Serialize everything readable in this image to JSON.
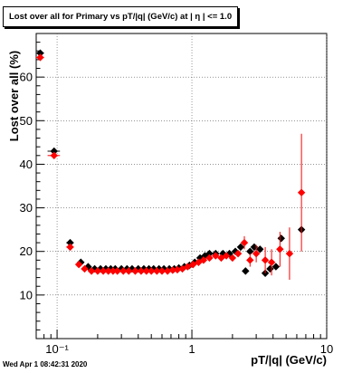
{
  "title": "Lost over all for Primary vs pT/|q| (GeV/c) at |  η | <= 1.0",
  "footer": "Wed Apr  1 08:42:31 2020",
  "chart_data": {
    "type": "scatter",
    "xlabel": "pT/|q| (GeV/c)",
    "ylabel": "Lost over all (%)",
    "xscale": "log",
    "xlim": [
      0.07,
      10
    ],
    "ylim": [
      0,
      70
    ],
    "grid": true,
    "x_tick_labels": [
      "10⁻¹",
      "1",
      "10"
    ],
    "x_tick_values": [
      0.1,
      1,
      10
    ],
    "y_tick_labels": [
      "10",
      "20",
      "30",
      "40",
      "50",
      "60"
    ],
    "y_tick_values": [
      10,
      20,
      30,
      40,
      50,
      60
    ],
    "series": [
      {
        "color": "#000000",
        "points": [
          {
            "x": 0.075,
            "y": 65.5,
            "xerr": 0.005
          },
          {
            "x": 0.095,
            "y": 43.0,
            "xerr": 0.01
          },
          {
            "x": 0.125,
            "y": 22.0,
            "xerr": 0.008
          },
          {
            "x": 0.15,
            "y": 17.5
          },
          {
            "x": 0.17,
            "y": 16.5
          },
          {
            "x": 0.19,
            "y": 16.0
          },
          {
            "x": 0.21,
            "y": 16.0
          },
          {
            "x": 0.23,
            "y": 16.0
          },
          {
            "x": 0.25,
            "y": 16.0
          },
          {
            "x": 0.27,
            "y": 16.0
          },
          {
            "x": 0.3,
            "y": 16.0
          },
          {
            "x": 0.33,
            "y": 16.0
          },
          {
            "x": 0.36,
            "y": 16.0
          },
          {
            "x": 0.4,
            "y": 16.0
          },
          {
            "x": 0.44,
            "y": 16.0
          },
          {
            "x": 0.48,
            "y": 16.0
          },
          {
            "x": 0.52,
            "y": 16.0
          },
          {
            "x": 0.57,
            "y": 16.0
          },
          {
            "x": 0.62,
            "y": 16.0
          },
          {
            "x": 0.68,
            "y": 16.0
          },
          {
            "x": 0.74,
            "y": 16.0
          },
          {
            "x": 0.8,
            "y": 16.2
          },
          {
            "x": 0.88,
            "y": 16.5
          },
          {
            "x": 0.96,
            "y": 16.8
          },
          {
            "x": 1.05,
            "y": 17.5
          },
          {
            "x": 1.15,
            "y": 18.5
          },
          {
            "x": 1.25,
            "y": 19.0
          },
          {
            "x": 1.35,
            "y": 19.5
          },
          {
            "x": 1.5,
            "y": 19.5
          },
          {
            "x": 1.7,
            "y": 19.5
          },
          {
            "x": 1.9,
            "y": 19.5
          },
          {
            "x": 2.1,
            "y": 20.0
          },
          {
            "x": 2.3,
            "y": 21.0
          },
          {
            "x": 2.5,
            "y": 15.5
          },
          {
            "x": 2.7,
            "y": 20.0
          },
          {
            "x": 2.9,
            "y": 21.0
          },
          {
            "x": 3.2,
            "y": 20.5
          },
          {
            "x": 3.5,
            "y": 15.0
          },
          {
            "x": 3.8,
            "y": 16.0
          },
          {
            "x": 4.2,
            "y": 16.5
          },
          {
            "x": 4.6,
            "y": 23.0
          },
          {
            "x": 6.5,
            "y": 25.0
          }
        ]
      },
      {
        "color": "#ff0000",
        "points": [
          {
            "x": 0.075,
            "y": 64.5,
            "xerr": 0.005
          },
          {
            "x": 0.095,
            "y": 42.0,
            "xerr": 0.01
          },
          {
            "x": 0.125,
            "y": 21.0,
            "xerr": 0.008
          },
          {
            "x": 0.145,
            "y": 17.0
          },
          {
            "x": 0.16,
            "y": 16.0
          },
          {
            "x": 0.18,
            "y": 15.5
          },
          {
            "x": 0.2,
            "y": 15.5
          },
          {
            "x": 0.22,
            "y": 15.5
          },
          {
            "x": 0.24,
            "y": 15.5
          },
          {
            "x": 0.26,
            "y": 15.5
          },
          {
            "x": 0.28,
            "y": 15.5
          },
          {
            "x": 0.31,
            "y": 15.5
          },
          {
            "x": 0.34,
            "y": 15.5
          },
          {
            "x": 0.38,
            "y": 15.5
          },
          {
            "x": 0.42,
            "y": 15.5
          },
          {
            "x": 0.46,
            "y": 15.5
          },
          {
            "x": 0.5,
            "y": 15.5
          },
          {
            "x": 0.55,
            "y": 15.5
          },
          {
            "x": 0.6,
            "y": 15.5
          },
          {
            "x": 0.66,
            "y": 15.5
          },
          {
            "x": 0.72,
            "y": 15.7
          },
          {
            "x": 0.78,
            "y": 15.8
          },
          {
            "x": 0.85,
            "y": 16.0
          },
          {
            "x": 0.93,
            "y": 16.5
          },
          {
            "x": 1.02,
            "y": 17.0
          },
          {
            "x": 1.12,
            "y": 17.5
          },
          {
            "x": 1.22,
            "y": 18.0
          },
          {
            "x": 1.35,
            "y": 18.5
          },
          {
            "x": 1.5,
            "y": 19.0
          },
          {
            "x": 1.65,
            "y": 18.5
          },
          {
            "x": 1.8,
            "y": 19.0
          },
          {
            "x": 2.0,
            "y": 18.5
          },
          {
            "x": 2.2,
            "y": 19.5
          },
          {
            "x": 2.45,
            "y": 22.0,
            "yerr": 1.5
          },
          {
            "x": 2.7,
            "y": 18.0,
            "yerr": 1.5
          },
          {
            "x": 3.0,
            "y": 19.5,
            "yerr": 2.0
          },
          {
            "x": 3.5,
            "y": 18.0,
            "yerr": 3.0
          },
          {
            "x": 3.9,
            "y": 17.5,
            "yerr": 3.0
          },
          {
            "x": 4.5,
            "y": 20.5,
            "yerr": 4.0
          },
          {
            "x": 5.3,
            "y": 19.5,
            "yerr": 6.0
          },
          {
            "x": 6.5,
            "y": 33.5,
            "yerr": 13.5
          }
        ]
      }
    ]
  }
}
